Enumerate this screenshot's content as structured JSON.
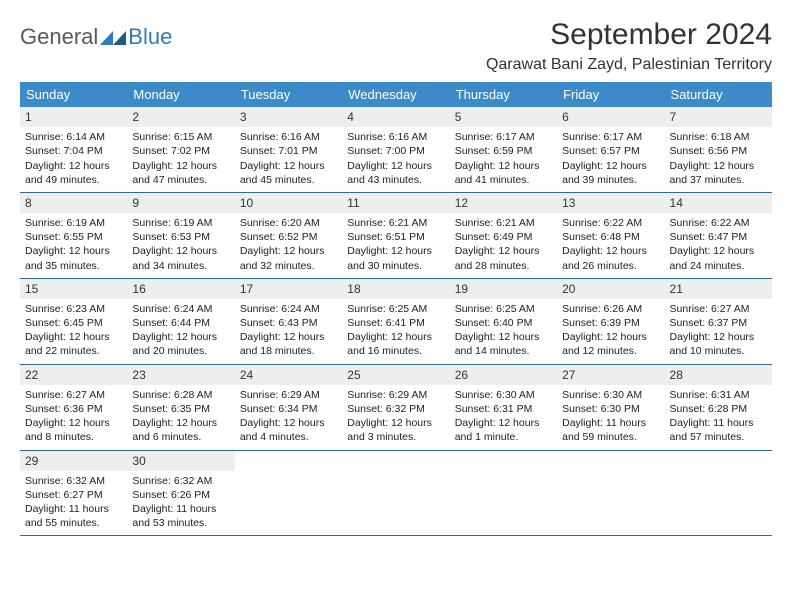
{
  "logo": {
    "text1": "General",
    "text2": "Blue"
  },
  "title": "September 2024",
  "location": "Qarawat Bani Zayd, Palestinian Territory",
  "colors": {
    "header_bg": "#3b8bc8",
    "header_fg": "#ffffff",
    "daynum_bg": "#eeeeee",
    "border": "#2a6aa0",
    "text": "#222222"
  },
  "day_labels": [
    "Sunday",
    "Monday",
    "Tuesday",
    "Wednesday",
    "Thursday",
    "Friday",
    "Saturday"
  ],
  "weeks": [
    [
      {
        "n": "1",
        "sr": "6:14 AM",
        "ss": "7:04 PM",
        "dl": "12 hours and 49 minutes."
      },
      {
        "n": "2",
        "sr": "6:15 AM",
        "ss": "7:02 PM",
        "dl": "12 hours and 47 minutes."
      },
      {
        "n": "3",
        "sr": "6:16 AM",
        "ss": "7:01 PM",
        "dl": "12 hours and 45 minutes."
      },
      {
        "n": "4",
        "sr": "6:16 AM",
        "ss": "7:00 PM",
        "dl": "12 hours and 43 minutes."
      },
      {
        "n": "5",
        "sr": "6:17 AM",
        "ss": "6:59 PM",
        "dl": "12 hours and 41 minutes."
      },
      {
        "n": "6",
        "sr": "6:17 AM",
        "ss": "6:57 PM",
        "dl": "12 hours and 39 minutes."
      },
      {
        "n": "7",
        "sr": "6:18 AM",
        "ss": "6:56 PM",
        "dl": "12 hours and 37 minutes."
      }
    ],
    [
      {
        "n": "8",
        "sr": "6:19 AM",
        "ss": "6:55 PM",
        "dl": "12 hours and 35 minutes."
      },
      {
        "n": "9",
        "sr": "6:19 AM",
        "ss": "6:53 PM",
        "dl": "12 hours and 34 minutes."
      },
      {
        "n": "10",
        "sr": "6:20 AM",
        "ss": "6:52 PM",
        "dl": "12 hours and 32 minutes."
      },
      {
        "n": "11",
        "sr": "6:21 AM",
        "ss": "6:51 PM",
        "dl": "12 hours and 30 minutes."
      },
      {
        "n": "12",
        "sr": "6:21 AM",
        "ss": "6:49 PM",
        "dl": "12 hours and 28 minutes."
      },
      {
        "n": "13",
        "sr": "6:22 AM",
        "ss": "6:48 PM",
        "dl": "12 hours and 26 minutes."
      },
      {
        "n": "14",
        "sr": "6:22 AM",
        "ss": "6:47 PM",
        "dl": "12 hours and 24 minutes."
      }
    ],
    [
      {
        "n": "15",
        "sr": "6:23 AM",
        "ss": "6:45 PM",
        "dl": "12 hours and 22 minutes."
      },
      {
        "n": "16",
        "sr": "6:24 AM",
        "ss": "6:44 PM",
        "dl": "12 hours and 20 minutes."
      },
      {
        "n": "17",
        "sr": "6:24 AM",
        "ss": "6:43 PM",
        "dl": "12 hours and 18 minutes."
      },
      {
        "n": "18",
        "sr": "6:25 AM",
        "ss": "6:41 PM",
        "dl": "12 hours and 16 minutes."
      },
      {
        "n": "19",
        "sr": "6:25 AM",
        "ss": "6:40 PM",
        "dl": "12 hours and 14 minutes."
      },
      {
        "n": "20",
        "sr": "6:26 AM",
        "ss": "6:39 PM",
        "dl": "12 hours and 12 minutes."
      },
      {
        "n": "21",
        "sr": "6:27 AM",
        "ss": "6:37 PM",
        "dl": "12 hours and 10 minutes."
      }
    ],
    [
      {
        "n": "22",
        "sr": "6:27 AM",
        "ss": "6:36 PM",
        "dl": "12 hours and 8 minutes."
      },
      {
        "n": "23",
        "sr": "6:28 AM",
        "ss": "6:35 PM",
        "dl": "12 hours and 6 minutes."
      },
      {
        "n": "24",
        "sr": "6:29 AM",
        "ss": "6:34 PM",
        "dl": "12 hours and 4 minutes."
      },
      {
        "n": "25",
        "sr": "6:29 AM",
        "ss": "6:32 PM",
        "dl": "12 hours and 3 minutes."
      },
      {
        "n": "26",
        "sr": "6:30 AM",
        "ss": "6:31 PM",
        "dl": "12 hours and 1 minute."
      },
      {
        "n": "27",
        "sr": "6:30 AM",
        "ss": "6:30 PM",
        "dl": "11 hours and 59 minutes."
      },
      {
        "n": "28",
        "sr": "6:31 AM",
        "ss": "6:28 PM",
        "dl": "11 hours and 57 minutes."
      }
    ],
    [
      {
        "n": "29",
        "sr": "6:32 AM",
        "ss": "6:27 PM",
        "dl": "11 hours and 55 minutes."
      },
      {
        "n": "30",
        "sr": "6:32 AM",
        "ss": "6:26 PM",
        "dl": "11 hours and 53 minutes."
      },
      null,
      null,
      null,
      null,
      null
    ]
  ],
  "labels": {
    "sunrise": "Sunrise: ",
    "sunset": "Sunset: ",
    "daylight": "Daylight: "
  }
}
